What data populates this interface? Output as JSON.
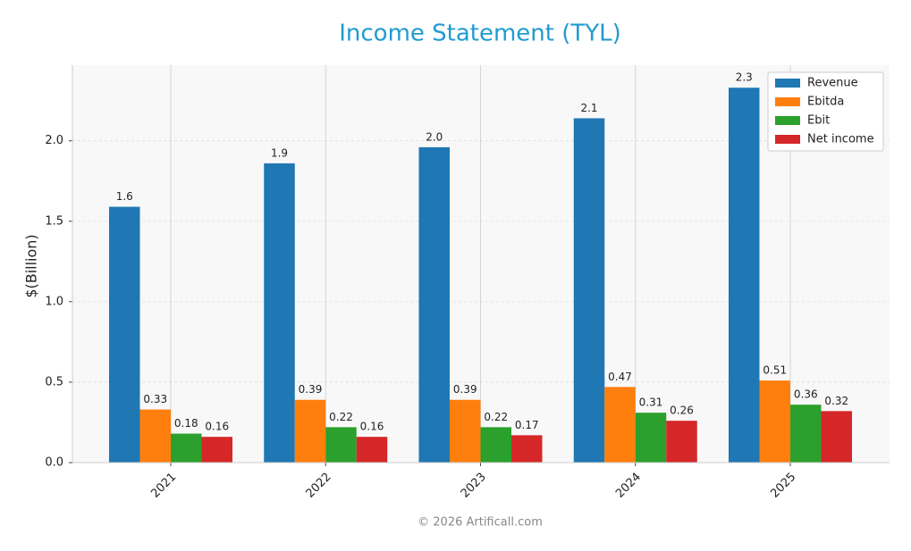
{
  "chart_data": {
    "type": "bar",
    "title": "Income Statement (TYL)",
    "ylabel": "$(Billion)",
    "footer": "© 2026 Artificall.com",
    "categories": [
      "2021",
      "2022",
      "2023",
      "2024",
      "2025"
    ],
    "series": [
      {
        "name": "Revenue",
        "color": "#1f77b4",
        "values": [
          1.59,
          1.86,
          1.96,
          2.14,
          2.33
        ],
        "value_labels": [
          "1.6",
          "1.9",
          "2.0",
          "2.1",
          "2.3"
        ]
      },
      {
        "name": "Ebitda",
        "color": "#ff7f0e",
        "values": [
          0.33,
          0.39,
          0.39,
          0.47,
          0.51
        ]
      },
      {
        "name": "Ebit",
        "color": "#2ca02c",
        "values": [
          0.18,
          0.22,
          0.22,
          0.31,
          0.36
        ]
      },
      {
        "name": "Net income",
        "color": "#d62728",
        "values": [
          0.16,
          0.16,
          0.17,
          0.26,
          0.32
        ]
      }
    ],
    "ylim": [
      0,
      2.47
    ],
    "yticks": [
      {
        "value": 0,
        "label": "0.0"
      },
      0.5,
      {
        "value": 1,
        "label": "1.0"
      },
      1.5,
      {
        "value": 2,
        "label": "2.0"
      }
    ],
    "grid": true,
    "legend": "upper right"
  }
}
